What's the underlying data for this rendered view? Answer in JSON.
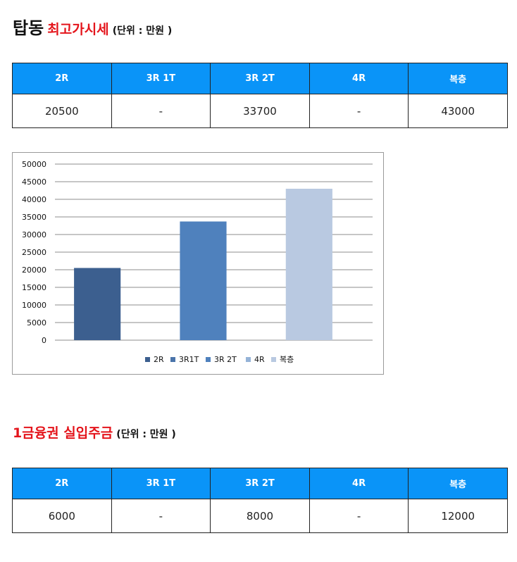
{
  "section1": {
    "title_main": "탑동",
    "title_sub": "최고가시세",
    "unit": "(단위 : 만원 )",
    "headers": [
      "2R",
      "3R 1T",
      "3R 2T",
      "4R",
      "복층"
    ],
    "values": [
      "20500",
      "-",
      "33700",
      "-",
      "43000"
    ]
  },
  "section2": {
    "title_sub": "1금융권 실입주금",
    "unit": "(단위 : 만원 )",
    "headers": [
      "2R",
      "3R 1T",
      "3R 2T",
      "4R",
      "복층"
    ],
    "values": [
      "6000",
      "-",
      "8000",
      "-",
      "12000"
    ]
  },
  "chart_data": {
    "type": "bar",
    "title": "",
    "xlabel": "",
    "ylabel": "",
    "ylim": [
      0,
      50000
    ],
    "yticks": [
      0,
      5000,
      10000,
      15000,
      20000,
      25000,
      30000,
      35000,
      40000,
      45000,
      50000
    ],
    "grid": true,
    "legend_position": "bottom",
    "series": [
      {
        "name": "2R",
        "value": 20500,
        "color": "#3c5f8f"
      },
      {
        "name": "3R1T",
        "value": null,
        "color": "#4a74aa"
      },
      {
        "name": "3R 2T",
        "value": 33700,
        "color": "#4f81bd"
      },
      {
        "name": "4R",
        "value": null,
        "color": "#95b3d7"
      },
      {
        "name": "복층",
        "value": 43000,
        "color": "#b9c9e1"
      }
    ]
  }
}
